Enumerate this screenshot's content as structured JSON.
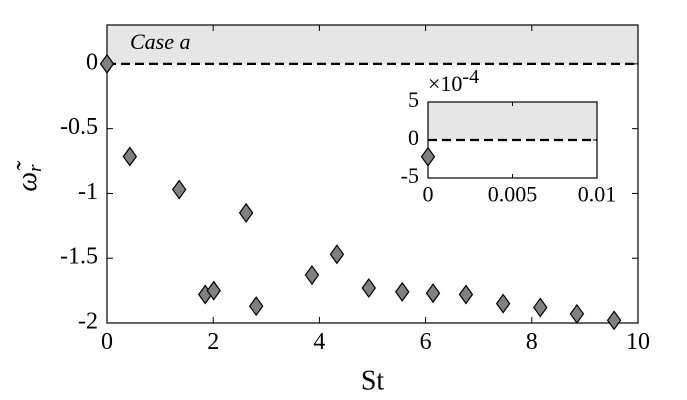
{
  "chart_data": [
    {
      "type": "scatter",
      "xlabel": "St",
      "ylabel": "ω̃",
      "ylabel_subscript": "r",
      "annotation": "Case a",
      "x": [
        0,
        0.43,
        1.36,
        1.85,
        2.01,
        2.62,
        2.81,
        3.86,
        4.33,
        4.93,
        5.56,
        6.14,
        6.76,
        7.46,
        8.16,
        8.85,
        9.55
      ],
      "y": [
        0,
        -0.715,
        -0.97,
        -1.78,
        -1.75,
        -1.15,
        -1.87,
        -1.63,
        -1.47,
        -1.73,
        -1.76,
        -1.77,
        -1.78,
        -1.85,
        -1.88,
        -1.93,
        -1.98
      ],
      "color": "#808080",
      "shade_above": 0,
      "shade_color": "#e6e6e6",
      "reference_line": 0,
      "xlim": [
        0,
        10
      ],
      "xticks": [
        0,
        2,
        4,
        6,
        8,
        10
      ],
      "ylim": [
        -2,
        0.3
      ],
      "yticks": [
        0,
        -0.5,
        -1,
        -1.5,
        -2
      ]
    },
    {
      "type": "scatter",
      "y_multiplier": "×10",
      "y_multiplier_exponent": "-4",
      "x": [
        0
      ],
      "y": [
        -2.2
      ],
      "color": "#808080",
      "shade_above": 0,
      "shade_color": "#e6e6e6",
      "reference_line": 0,
      "xlim": [
        0,
        0.01
      ],
      "xticks": [
        0,
        0.005,
        0.01
      ],
      "ylim": [
        -5,
        5
      ],
      "yticks": [
        5,
        0,
        -5
      ]
    }
  ]
}
